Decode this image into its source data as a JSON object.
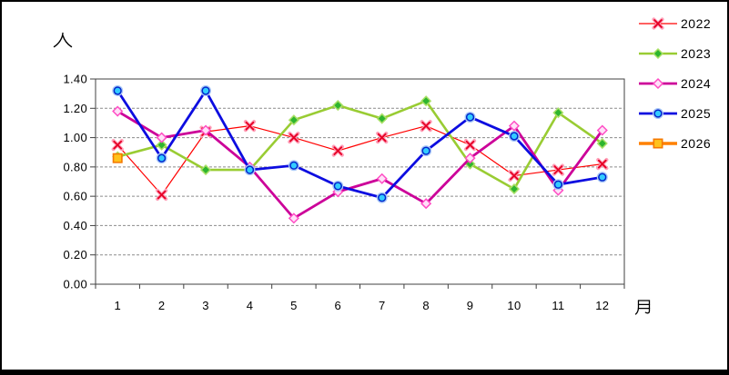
{
  "page": {
    "background": "#ffffff",
    "frame_color": "#000000"
  },
  "chart_data": {
    "type": "line",
    "title": "",
    "ylabel": "人",
    "xlabel": "月",
    "categories": [
      "1",
      "2",
      "3",
      "4",
      "5",
      "6",
      "7",
      "8",
      "9",
      "10",
      "11",
      "12"
    ],
    "ylim": [
      0.0,
      1.4
    ],
    "ytick_step": 0.2,
    "ytick_labels": [
      "0.00",
      "0.20",
      "0.40",
      "0.60",
      "0.80",
      "1.00",
      "1.20",
      "1.40"
    ],
    "grid": "horizontal-dashed",
    "grid_color": "#8c8c8c",
    "plot_border_color": "#404040",
    "legend_position": "right",
    "series": [
      {
        "name": "2022",
        "line_color": "#ff0000",
        "line_width": 1.2,
        "marker": "x",
        "marker_color": "#e60026",
        "marker_halo": "#ff9fb8",
        "values": [
          0.95,
          0.61,
          1.04,
          1.08,
          1.0,
          0.91,
          1.0,
          1.08,
          0.95,
          0.74,
          0.78,
          0.82
        ]
      },
      {
        "name": "2023",
        "line_color": "#99cc33",
        "line_width": 2.6,
        "marker": "diamond",
        "marker_fill": "#2eb52e",
        "marker_stroke": "#a9e066",
        "values": [
          0.87,
          0.95,
          0.78,
          0.78,
          1.12,
          1.22,
          1.13,
          1.25,
          0.82,
          0.65,
          1.17,
          0.96
        ]
      },
      {
        "name": "2024",
        "line_color": "#cc0099",
        "line_width": 2.8,
        "marker": "diamond-open",
        "marker_fill": "#ffe0f8",
        "marker_stroke": "#ff4dc4",
        "values": [
          1.18,
          1.0,
          1.05,
          0.8,
          0.45,
          0.63,
          0.72,
          0.55,
          0.86,
          1.08,
          0.64,
          1.05
        ]
      },
      {
        "name": "2025",
        "line_color": "#0d0de0",
        "line_width": 2.8,
        "marker": "circle",
        "marker_fill": "#33ccff",
        "marker_stroke": "#0026cc",
        "marker_halo": "#a8c8f8",
        "values": [
          1.32,
          0.86,
          1.32,
          0.78,
          0.81,
          0.67,
          0.59,
          0.91,
          1.14,
          1.01,
          0.68,
          0.73
        ]
      },
      {
        "name": "2026",
        "line_color": "#ff8000",
        "line_width": 3.6,
        "marker": "square",
        "marker_fill": "#ffc21c",
        "marker_stroke": "#f57900",
        "values": [
          0.86,
          null,
          null,
          null,
          null,
          null,
          null,
          null,
          null,
          null,
          null,
          null
        ]
      }
    ]
  }
}
